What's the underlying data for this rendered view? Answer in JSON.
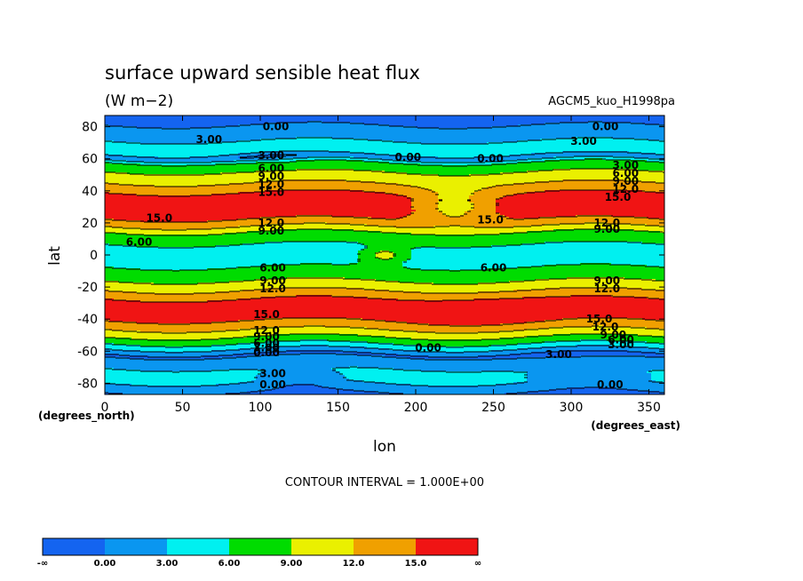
{
  "chart_data": {
    "type": "contour",
    "title": "surface upward sensible heat flux",
    "units": "(W m−2)",
    "model_label": "AGCM5_kuo_H1998pa",
    "xlabel": "lon",
    "ylabel": "lat",
    "x_unit_note": "(degrees_east)",
    "y_unit_note": "(degrees_north)",
    "xlim": [
      0,
      360
    ],
    "ylim": [
      -87,
      87
    ],
    "xticks": [
      0,
      50,
      100,
      150,
      200,
      250,
      300,
      350
    ],
    "yticks": [
      -80,
      -60,
      -40,
      -20,
      0,
      20,
      40,
      60,
      80
    ],
    "contour_interval_text": "CONTOUR INTERVAL = 1.000E+00",
    "colorbar": {
      "colors": [
        "#1464f0",
        "#0a96f0",
        "#00f0f0",
        "#00dc00",
        "#eaf000",
        "#f0a000",
        "#f01414"
      ],
      "boundary_labels": [
        "-∞",
        "0.00",
        "3.00",
        "6.00",
        "9.00",
        "12.0",
        "15.0",
        "∞"
      ]
    },
    "zonal_profile": [
      {
        "lat": 87,
        "value": -0.5
      },
      {
        "lat": 82,
        "value": -0.2
      },
      {
        "lat": 76,
        "value": 1.2
      },
      {
        "lat": 70,
        "value": 3.5
      },
      {
        "lat": 64,
        "value": 4.5
      },
      {
        "lat": 61,
        "value": 0.8
      },
      {
        "lat": 57,
        "value": 7.5
      },
      {
        "lat": 52,
        "value": 9.0
      },
      {
        "lat": 47,
        "value": 11.0
      },
      {
        "lat": 42,
        "value": 13.5
      },
      {
        "lat": 36,
        "value": 16.5
      },
      {
        "lat": 29,
        "value": 17.0
      },
      {
        "lat": 23,
        "value": 15.3
      },
      {
        "lat": 18,
        "value": 12.0
      },
      {
        "lat": 13,
        "value": 8.0
      },
      {
        "lat": 8,
        "value": 6.5
      },
      {
        "lat": 4,
        "value": 4.8
      },
      {
        "lat": 0,
        "value": 4.4
      },
      {
        "lat": -4,
        "value": 4.8
      },
      {
        "lat": -8,
        "value": 6.2
      },
      {
        "lat": -13,
        "value": 7.5
      },
      {
        "lat": -18,
        "value": 10.0
      },
      {
        "lat": -24,
        "value": 13.0
      },
      {
        "lat": -29,
        "value": 16.0
      },
      {
        "lat": -36,
        "value": 17.0
      },
      {
        "lat": -42,
        "value": 14.5
      },
      {
        "lat": -48,
        "value": 11.0
      },
      {
        "lat": -54,
        "value": 7.0
      },
      {
        "lat": -59,
        "value": 2.5
      },
      {
        "lat": -62,
        "value": -0.5
      },
      {
        "lat": -67,
        "value": 1.5
      },
      {
        "lat": -73,
        "value": 4.0
      },
      {
        "lat": -79,
        "value": 3.5
      },
      {
        "lat": -83,
        "value": 1.0
      },
      {
        "lat": -87,
        "value": -0.5
      }
    ],
    "features": [
      {
        "type": "gaussian",
        "lon": 180,
        "lat": 0,
        "amp": 5.5,
        "lonw": 15,
        "latw": 5
      },
      {
        "type": "gaussian",
        "lon": 125,
        "lat": -75,
        "amp": -2.5,
        "lonw": 25,
        "latw": 7
      },
      {
        "type": "gaussian",
        "lon": 310,
        "lat": -72,
        "amp": -2.5,
        "lonw": 40,
        "latw": 8
      },
      {
        "type": "gaussian",
        "lon": 110,
        "lat": 60,
        "amp": -2.0,
        "lonw": 30,
        "latw": 5
      },
      {
        "type": "gaussian",
        "lon": 225,
        "lat": 30,
        "amp": -6.0,
        "lonw": 25,
        "latw": 10
      },
      {
        "type": "gaussian",
        "lon": 245,
        "lat": -35,
        "amp": 2.0,
        "lonw": 40,
        "latw": 8
      }
    ],
    "contour_labels": [
      {
        "text": "0.00",
        "lon": 110,
        "lat": 80
      },
      {
        "text": "0.00",
        "lon": 322,
        "lat": 80
      },
      {
        "text": "3.00",
        "lon": 67,
        "lat": 72
      },
      {
        "text": "3.00",
        "lon": 308,
        "lat": 71
      },
      {
        "text": "0.00",
        "lon": 195,
        "lat": 61
      },
      {
        "text": "0.00",
        "lon": 248,
        "lat": 60
      },
      {
        "text": "3.00",
        "lon": 107,
        "lat": 62
      },
      {
        "text": "3.00",
        "lon": 335,
        "lat": 56
      },
      {
        "text": "6.00",
        "lon": 107,
        "lat": 54
      },
      {
        "text": "6.00",
        "lon": 335,
        "lat": 51
      },
      {
        "text": "9.00",
        "lon": 107,
        "lat": 49
      },
      {
        "text": "9.00",
        "lon": 335,
        "lat": 46
      },
      {
        "text": "12.0",
        "lon": 107,
        "lat": 44
      },
      {
        "text": "12.0",
        "lon": 335,
        "lat": 41
      },
      {
        "text": "15.0",
        "lon": 107,
        "lat": 39
      },
      {
        "text": "15.0",
        "lon": 330,
        "lat": 36
      },
      {
        "text": "15.0",
        "lon": 35,
        "lat": 23
      },
      {
        "text": "15.0",
        "lon": 248,
        "lat": 22
      },
      {
        "text": "12.0",
        "lon": 107,
        "lat": 20
      },
      {
        "text": "12.0",
        "lon": 323,
        "lat": 20
      },
      {
        "text": "9.00",
        "lon": 107,
        "lat": 15
      },
      {
        "text": "9.00",
        "lon": 323,
        "lat": 16
      },
      {
        "text": "6.00",
        "lon": 22,
        "lat": 8
      },
      {
        "text": "6.00",
        "lon": 108,
        "lat": -8
      },
      {
        "text": "6.00",
        "lon": 250,
        "lat": -8
      },
      {
        "text": "9.00",
        "lon": 108,
        "lat": -16
      },
      {
        "text": "9.00",
        "lon": 323,
        "lat": -16
      },
      {
        "text": "12.0",
        "lon": 108,
        "lat": -21
      },
      {
        "text": "12.0",
        "lon": 323,
        "lat": -21
      },
      {
        "text": "15.0",
        "lon": 104,
        "lat": -37
      },
      {
        "text": "15.0",
        "lon": 318,
        "lat": -40
      },
      {
        "text": "12.0",
        "lon": 104,
        "lat": -47
      },
      {
        "text": "12.0",
        "lon": 322,
        "lat": -45
      },
      {
        "text": "9.00",
        "lon": 104,
        "lat": -51
      },
      {
        "text": "9.00",
        "lon": 327,
        "lat": -50
      },
      {
        "text": "6.00",
        "lon": 104,
        "lat": -55
      },
      {
        "text": "6.00",
        "lon": 332,
        "lat": -53
      },
      {
        "text": "3.00",
        "lon": 104,
        "lat": -58
      },
      {
        "text": "3.00",
        "lon": 332,
        "lat": -56
      },
      {
        "text": "0.00",
        "lon": 104,
        "lat": -61
      },
      {
        "text": "0.00",
        "lon": 208,
        "lat": -58
      },
      {
        "text": "3.00",
        "lon": 292,
        "lat": -62
      },
      {
        "text": "3.00",
        "lon": 108,
        "lat": -74
      },
      {
        "text": "0.00",
        "lon": 108,
        "lat": -81
      },
      {
        "text": "0.00",
        "lon": 325,
        "lat": -81
      }
    ]
  }
}
